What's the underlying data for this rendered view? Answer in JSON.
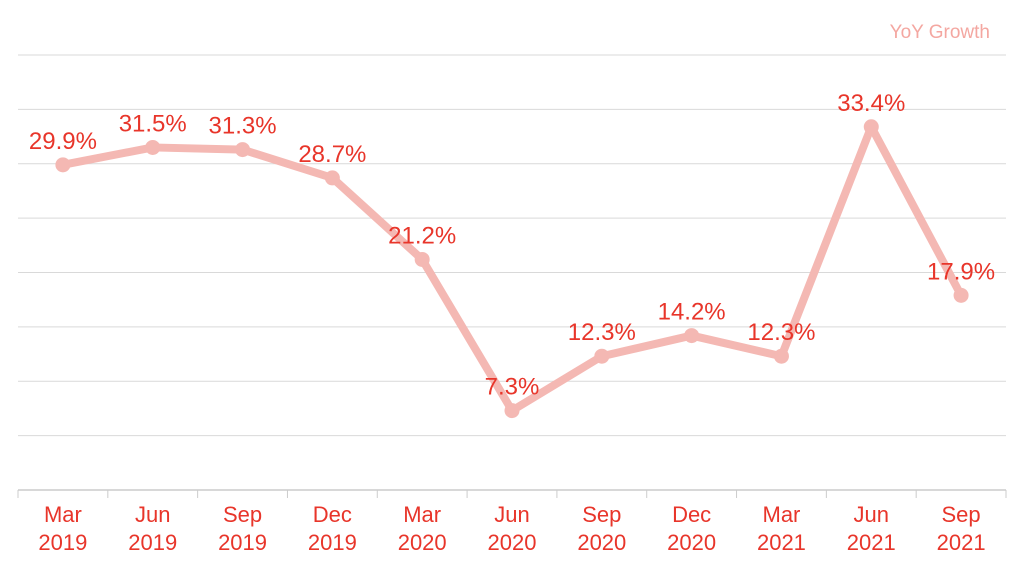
{
  "chart_data": {
    "type": "line",
    "categories": [
      [
        "Mar",
        "2019"
      ],
      [
        "Jun",
        "2019"
      ],
      [
        "Sep",
        "2019"
      ],
      [
        "Dec",
        "2019"
      ],
      [
        "Mar",
        "2020"
      ],
      [
        "Jun",
        "2020"
      ],
      [
        "Sep",
        "2020"
      ],
      [
        "Dec",
        "2020"
      ],
      [
        "Mar",
        "2021"
      ],
      [
        "Jun",
        "2021"
      ],
      [
        "Sep",
        "2021"
      ]
    ],
    "series": [
      {
        "name": "YoY Growth",
        "values": [
          29.9,
          31.5,
          31.3,
          28.7,
          21.2,
          7.3,
          12.3,
          14.2,
          12.3,
          33.4,
          17.9
        ],
        "labels": [
          "29.9%",
          "31.5%",
          "31.3%",
          "28.7%",
          "21.2%",
          "7.3%",
          "12.3%",
          "14.2%",
          "12.3%",
          "33.4%",
          "17.9%"
        ]
      }
    ],
    "title": "",
    "xlabel": "",
    "ylabel": "",
    "ylim": [
      0,
      40
    ],
    "grid": true,
    "legend": "top-right",
    "colors": {
      "line": "#f4b8b3",
      "label": "#e8352a",
      "legend": "#f4a7a1",
      "grid": "#d9d9d9",
      "axis": "#cccccc"
    }
  }
}
